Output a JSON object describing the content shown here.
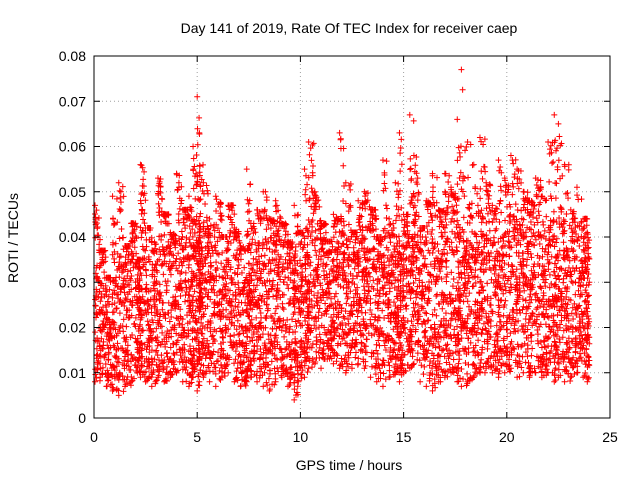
{
  "chart_data": {
    "type": "scatter",
    "title": "Day 141 of 2019, Rate Of TEC Index for receiver caep",
    "xlabel": "GPS time / hours",
    "ylabel": "ROTI / TECUs",
    "xlim": [
      0,
      25
    ],
    "ylim": [
      0,
      0.08
    ],
    "x_ticks": [
      0,
      5,
      10,
      15,
      20,
      25
    ],
    "y_ticks": [
      0,
      0.01,
      0.02,
      0.03,
      0.04,
      0.05,
      0.06,
      0.07,
      0.08
    ],
    "x_tick_labels": [
      "0",
      "5",
      "10",
      "15",
      "20",
      "25"
    ],
    "y_tick_labels": [
      "0",
      "0.01",
      "0.02",
      "0.03",
      "0.04",
      "0.05",
      "0.06",
      "0.07",
      "0.08"
    ],
    "grid": true,
    "marker": "+",
    "series": [
      {
        "name": "ROTI",
        "color": "#ff0000",
        "x": [
          0.05,
          0.3,
          0.6,
          0.9,
          1.2,
          1.5,
          1.8,
          2.1,
          2.25,
          2.5,
          2.8,
          3.1,
          3.4,
          3.7,
          4.0,
          4.3,
          4.6,
          4.8,
          5.0,
          5.1,
          5.3,
          5.6,
          5.9,
          6.2,
          6.5,
          6.8,
          7.1,
          7.4,
          7.6,
          7.9,
          8.2,
          8.5,
          8.8,
          9.1,
          9.4,
          9.7,
          9.9,
          10.2,
          10.4,
          10.7,
          11.0,
          11.3,
          11.6,
          11.9,
          12.2,
          12.5,
          12.8,
          13.1,
          13.4,
          13.7,
          14.0,
          14.3,
          14.6,
          14.8,
          15.0,
          15.3,
          15.5,
          15.8,
          16.1,
          16.4,
          16.7,
          17.0,
          17.3,
          17.6,
          17.8,
          18.1,
          18.4,
          18.7,
          19.0,
          19.3,
          19.6,
          19.9,
          20.2,
          20.5,
          20.8,
          21.1,
          21.4,
          21.7,
          22.0,
          22.3,
          22.5,
          22.8,
          23.1,
          23.4,
          23.7,
          23.9
        ],
        "y": [
          0.047,
          0.037,
          0.031,
          0.049,
          0.052,
          0.038,
          0.043,
          0.035,
          0.056,
          0.042,
          0.039,
          0.053,
          0.045,
          0.041,
          0.054,
          0.046,
          0.049,
          0.06,
          0.071,
          0.063,
          0.052,
          0.044,
          0.049,
          0.04,
          0.047,
          0.042,
          0.038,
          0.055,
          0.043,
          0.046,
          0.05,
          0.044,
          0.048,
          0.043,
          0.039,
          0.047,
          0.041,
          0.055,
          0.061,
          0.05,
          0.043,
          0.039,
          0.045,
          0.063,
          0.052,
          0.041,
          0.048,
          0.05,
          0.046,
          0.04,
          0.057,
          0.044,
          0.052,
          0.063,
          0.045,
          0.067,
          0.058,
          0.042,
          0.048,
          0.054,
          0.046,
          0.054,
          0.051,
          0.066,
          0.077,
          0.061,
          0.056,
          0.062,
          0.052,
          0.047,
          0.057,
          0.053,
          0.058,
          0.055,
          0.05,
          0.048,
          0.053,
          0.049,
          0.061,
          0.067,
          0.065,
          0.056,
          0.046,
          0.051,
          0.044,
          0.041
        ],
        "min_values": [
          0.008,
          0.009,
          0.007,
          0.006,
          0.005,
          0.007,
          0.008,
          0.01,
          0.009,
          0.008,
          0.007,
          0.009,
          0.008,
          0.009,
          0.01,
          0.008,
          0.007,
          0.009,
          0.006,
          0.008,
          0.009,
          0.008,
          0.007,
          0.009,
          0.01,
          0.008,
          0.007,
          0.008,
          0.009,
          0.008,
          0.007,
          0.006,
          0.008,
          0.009,
          0.007,
          0.004,
          0.008,
          0.009,
          0.011,
          0.012,
          0.011,
          0.013,
          0.012,
          0.011,
          0.01,
          0.011,
          0.012,
          0.011,
          0.009,
          0.008,
          0.007,
          0.009,
          0.01,
          0.008,
          0.01,
          0.011,
          0.012,
          0.008,
          0.007,
          0.006,
          0.008,
          0.009,
          0.01,
          0.008,
          0.007,
          0.008,
          0.009,
          0.01,
          0.011,
          0.01,
          0.009,
          0.01,
          0.011,
          0.009,
          0.01,
          0.009,
          0.01,
          0.009,
          0.01,
          0.008,
          0.009,
          0.008,
          0.009,
          0.01,
          0.009,
          0.008
        ]
      }
    ]
  }
}
